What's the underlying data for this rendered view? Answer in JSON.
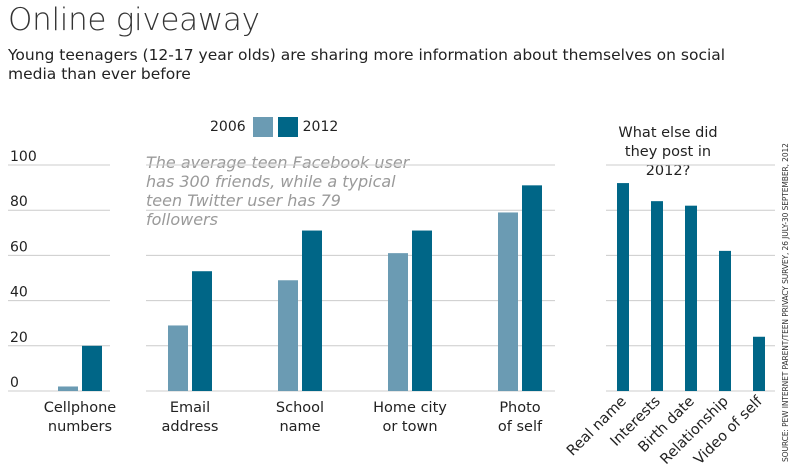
{
  "title": "Online giveaway",
  "subtitle": "Young teenagers (12-17 year olds) are sharing more information about themselves on social media than ever before",
  "annotation": "The average teen Facebook user has 300 friends, while a typical teen Twitter user has 79 followers",
  "source": "SOURCE: PEW INTERNET PARENT/TEEN PRIVACY SURVEY, 26 JULY-30 SEPTEMBER, 2012",
  "colors": {
    "y2006": "#6b9bb3",
    "y2012": "#006687",
    "grid": "#cccccc"
  },
  "chart_data": [
    {
      "type": "bar",
      "categories": [
        [
          "Cellphone",
          "numbers"
        ],
        [
          "Email",
          "address"
        ],
        [
          "School",
          "name"
        ],
        [
          "Home city",
          "or town"
        ],
        [
          "Photo",
          "of self"
        ]
      ],
      "series": [
        {
          "name": "2006",
          "values": [
            2,
            29,
            49,
            61,
            79
          ]
        },
        {
          "name": "2012",
          "values": [
            20,
            53,
            71,
            71,
            91
          ]
        }
      ],
      "ylim": [
        0,
        100
      ],
      "yticks": [
        0,
        20,
        40,
        60,
        80,
        100
      ],
      "legend": "top-center"
    },
    {
      "type": "bar",
      "title": "What else did they post in 2012?",
      "categories": [
        "Real name",
        "Interests",
        "Birth date",
        "Relationship",
        "Video of self"
      ],
      "series": [
        {
          "name": "2012",
          "values": [
            92,
            84,
            82,
            62,
            24
          ]
        }
      ],
      "ylim": [
        0,
        100
      ]
    }
  ]
}
